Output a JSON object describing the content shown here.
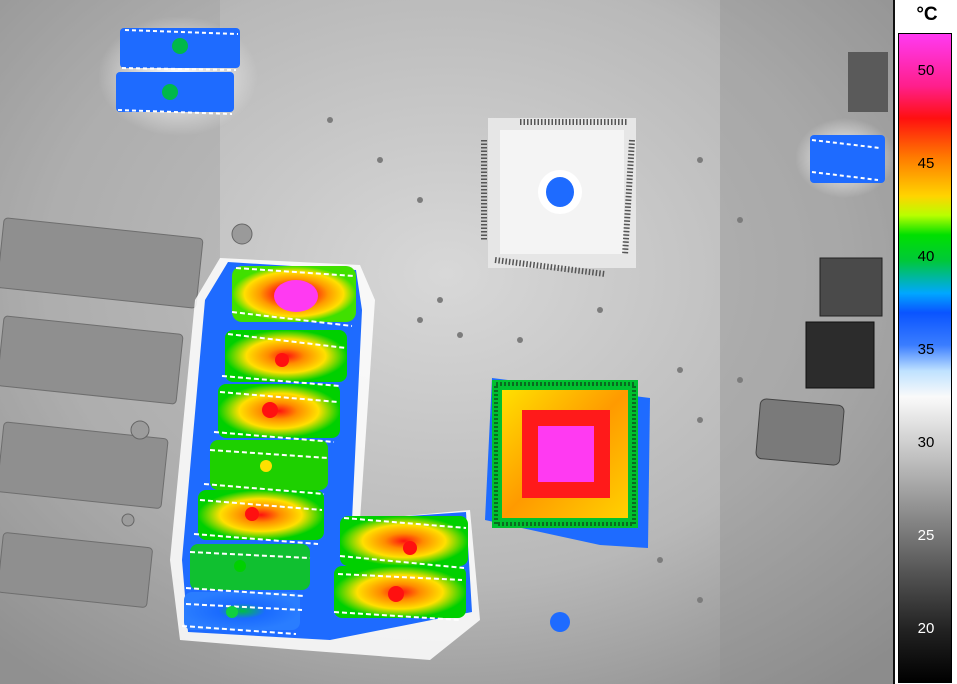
{
  "image": {
    "description_label": "Infrared thermal image of circuit board"
  },
  "scale": {
    "unit": "°C",
    "ticks": [
      "50",
      "45",
      "40",
      "35",
      "30",
      "25",
      "20"
    ]
  },
  "colors": {
    "hot_max": "#ff3af2",
    "hot": "#ff1010",
    "warm": "#ffd400",
    "mid": "#00e000",
    "cool": "#0a54ff",
    "ambient": "#bdbdbd"
  }
}
